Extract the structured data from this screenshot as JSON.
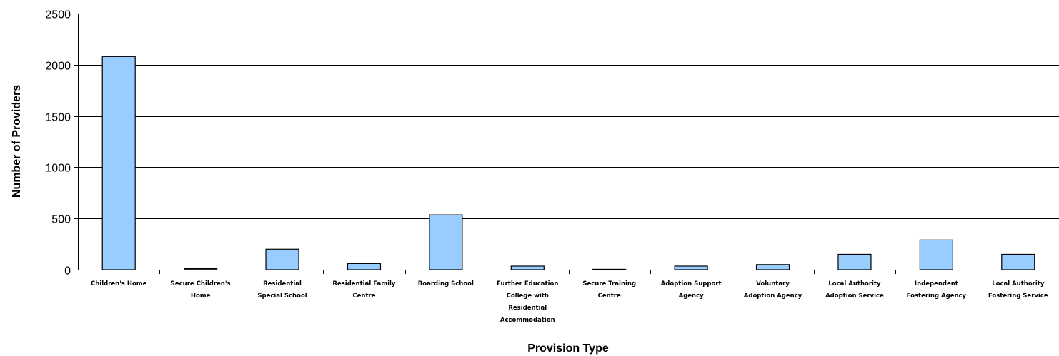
{
  "chart_data": {
    "type": "bar",
    "title": "",
    "xlabel": "Provision Type",
    "ylabel": "Number of Providers",
    "ylim": [
      0,
      2500
    ],
    "yticks": [
      0,
      500,
      1000,
      1500,
      2000,
      2500
    ],
    "grid": true,
    "legend": "none",
    "bar_color": "#99ccff",
    "bar_stroke": "#000000",
    "categories": [
      [
        "Children's Home"
      ],
      [
        "Secure Children's",
        "Home"
      ],
      [
        "Residential",
        "Special School"
      ],
      [
        "Residential Family",
        "Centre"
      ],
      [
        "Boarding School"
      ],
      [
        "Further Education",
        "College with",
        "Residential",
        "Accommodation"
      ],
      [
        "Secure Training",
        "Centre"
      ],
      [
        "Adoption Support",
        "Agency"
      ],
      [
        "Voluntary",
        "Adoption Agency"
      ],
      [
        "Local Authority",
        "Adoption Service"
      ],
      [
        "Independent",
        "Fostering Agency"
      ],
      [
        "Local Authority",
        "Fostering Service"
      ]
    ],
    "values": [
      2080,
      10,
      200,
      60,
      535,
      35,
      4,
      35,
      50,
      150,
      290,
      150
    ]
  }
}
